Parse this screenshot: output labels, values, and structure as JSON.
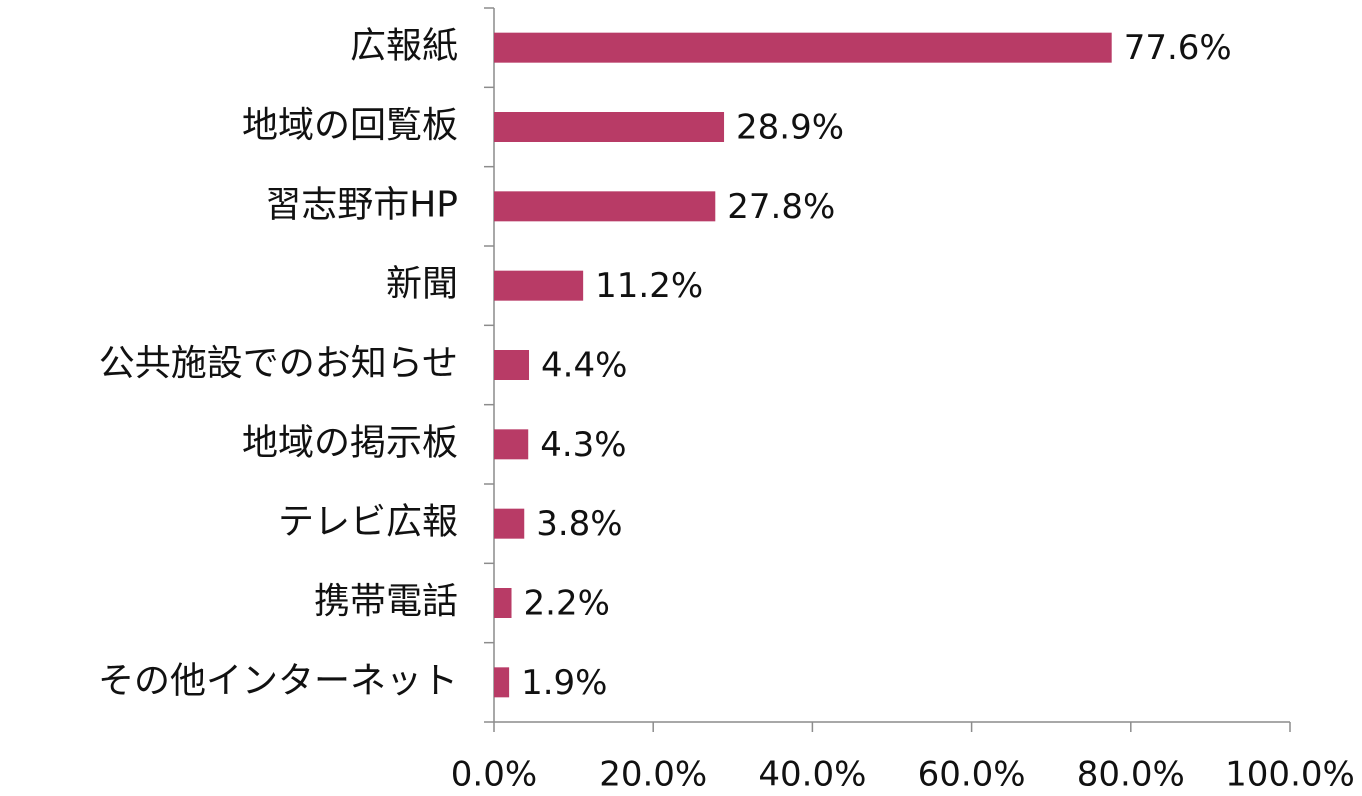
{
  "chart_data": {
    "type": "bar",
    "orientation": "horizontal",
    "categories": [
      "広報紙",
      "地域の回覧板",
      "習志野市HP",
      "新聞",
      "公共施設でのお知らせ",
      "地域の掲示板",
      "テレビ広報",
      "携帯電話",
      "その他インターネット"
    ],
    "values": [
      77.6,
      28.9,
      27.8,
      11.2,
      4.4,
      4.3,
      3.8,
      2.2,
      1.9
    ],
    "value_labels": [
      "77.6%",
      "28.9%",
      "27.8%",
      "11.2%",
      "4.4%",
      "4.3%",
      "3.8%",
      "2.2%",
      "1.9%"
    ],
    "color": "#b83b66",
    "xlim": [
      0,
      100
    ],
    "xticks": [
      {
        "value": 0,
        "label": "0.0%"
      },
      {
        "value": 20,
        "label": "20.0%"
      },
      {
        "value": 40,
        "label": "40.0%"
      },
      {
        "value": 60,
        "label": "60.0%"
      },
      {
        "value": 80,
        "label": "80.0%"
      },
      {
        "value": 100,
        "label": "100.0%"
      }
    ],
    "grid": false
  }
}
